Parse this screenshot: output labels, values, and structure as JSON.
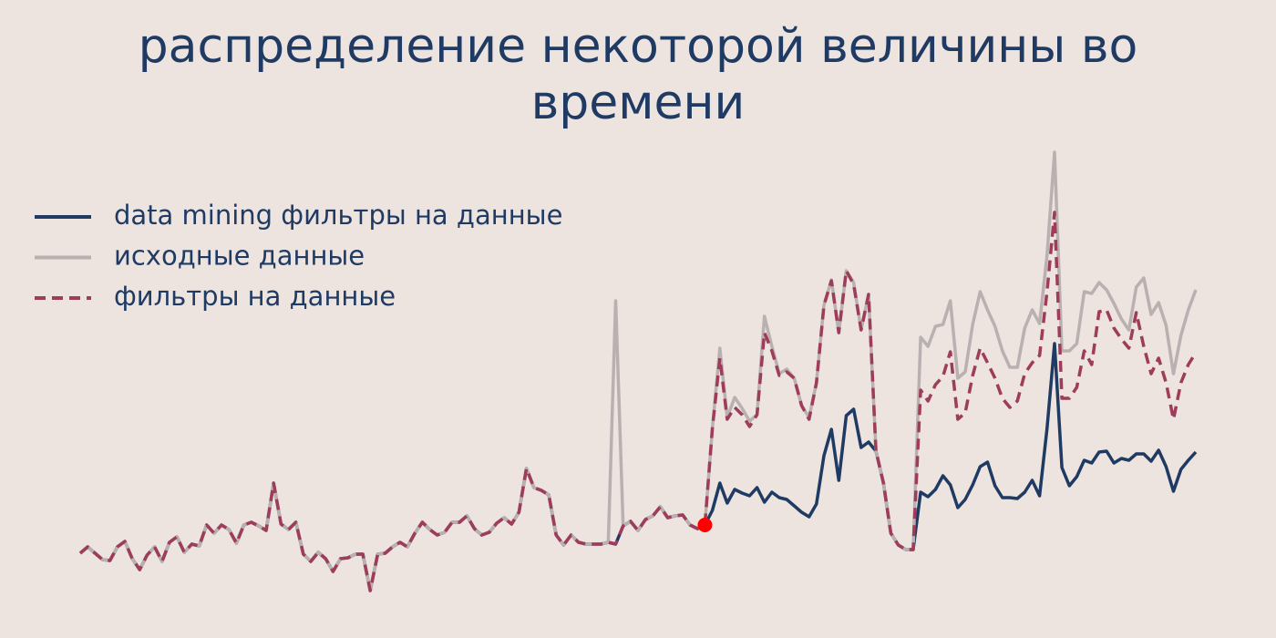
{
  "chart_data": {
    "type": "line",
    "title": "распределение некоторой величины во времени",
    "ylim": [
      0,
      520
    ],
    "legend": "upper left",
    "highlight_index": 84,
    "highlight_color": "#ff0000",
    "series": [
      {
        "name": "data mining фильтры на данные",
        "color": "#1f3a63",
        "style": "solid",
        "values": [
          53,
          60,
          53,
          46,
          45,
          60,
          66,
          47,
          35,
          51,
          60,
          44,
          65,
          71,
          54,
          63,
          61,
          84,
          75,
          84,
          79,
          64,
          84,
          87,
          83,
          78,
          130,
          85,
          79,
          87,
          52,
          44,
          54,
          47,
          33,
          47,
          48,
          52,
          52,
          12,
          52,
          53,
          60,
          65,
          60,
          75,
          87,
          79,
          73,
          76,
          87,
          87,
          94,
          80,
          73,
          76,
          86,
          92,
          85,
          98,
          146,
          125,
          122,
          117,
          73,
          62,
          73,
          65,
          63,
          63,
          63,
          65,
          63,
          83,
          88,
          78,
          90,
          94,
          104,
          92,
          94,
          95,
          84,
          80,
          84,
          100,
          130,
          108,
          123,
          119,
          116,
          125,
          109,
          120,
          114,
          112,
          105,
          98,
          93,
          107,
          160,
          189,
          133,
          204,
          211,
          169,
          175,
          165,
          130,
          75,
          62,
          57,
          57,
          120,
          115,
          123,
          138,
          128,
          103,
          112,
          128,
          148,
          153,
          127,
          114,
          114,
          113,
          120,
          133,
          116,
          190,
          283,
          147,
          127,
          137,
          155,
          152,
          164,
          165,
          152,
          157,
          155,
          162,
          162,
          154,
          166,
          148,
          121,
          145,
          155,
          164
        ]
      },
      {
        "name": "исходные данные",
        "color": "#b9b1b1",
        "style": "solid",
        "values": [
          53,
          60,
          53,
          46,
          45,
          60,
          66,
          47,
          35,
          51,
          60,
          44,
          65,
          71,
          54,
          63,
          61,
          84,
          75,
          84,
          79,
          64,
          84,
          87,
          83,
          78,
          130,
          85,
          79,
          87,
          52,
          44,
          54,
          47,
          33,
          47,
          48,
          52,
          52,
          12,
          52,
          53,
          60,
          65,
          60,
          75,
          87,
          79,
          73,
          76,
          87,
          87,
          94,
          80,
          73,
          76,
          86,
          92,
          85,
          98,
          146,
          125,
          122,
          117,
          73,
          62,
          73,
          65,
          63,
          63,
          63,
          65,
          330,
          83,
          88,
          78,
          90,
          94,
          104,
          92,
          94,
          95,
          84,
          80,
          84,
          190,
          278,
          202,
          224,
          212,
          198,
          205,
          313,
          280,
          250,
          255,
          245,
          215,
          202,
          240,
          325,
          353,
          295,
          363,
          350,
          298,
          337,
          165,
          130,
          75,
          62,
          57,
          57,
          290,
          280,
          302,
          304,
          330,
          245,
          252,
          304,
          340,
          320,
          302,
          275,
          257,
          257,
          300,
          320,
          305,
          380,
          493,
          275,
          275,
          283,
          340,
          338,
          350,
          342,
          327,
          310,
          298,
          345,
          355,
          315,
          328,
          303,
          250,
          292,
          320,
          342
        ]
      },
      {
        "name": "фильтры на данные",
        "color": "#9e3d5a",
        "style": "dashed",
        "values": [
          53,
          60,
          53,
          46,
          45,
          60,
          66,
          47,
          35,
          51,
          60,
          44,
          65,
          71,
          54,
          63,
          61,
          84,
          75,
          84,
          79,
          64,
          84,
          87,
          83,
          78,
          130,
          85,
          79,
          87,
          52,
          44,
          54,
          47,
          33,
          47,
          48,
          52,
          52,
          12,
          52,
          53,
          60,
          65,
          60,
          75,
          87,
          79,
          73,
          76,
          87,
          87,
          94,
          80,
          73,
          76,
          86,
          92,
          85,
          98,
          146,
          125,
          122,
          117,
          73,
          62,
          73,
          65,
          63,
          63,
          63,
          65,
          63,
          83,
          88,
          78,
          90,
          94,
          104,
          92,
          94,
          95,
          84,
          80,
          84,
          190,
          267,
          200,
          213,
          205,
          192,
          205,
          295,
          275,
          248,
          252,
          245,
          215,
          200,
          240,
          325,
          352,
          295,
          363,
          348,
          298,
          337,
          165,
          130,
          75,
          62,
          57,
          57,
          232,
          220,
          238,
          247,
          274,
          200,
          207,
          248,
          278,
          262,
          245,
          223,
          213,
          220,
          250,
          262,
          270,
          340,
          427,
          223,
          223,
          235,
          275,
          260,
          318,
          320,
          300,
          288,
          278,
          317,
          280,
          250,
          267,
          240,
          200,
          240,
          260,
          273
        ]
      }
    ]
  }
}
